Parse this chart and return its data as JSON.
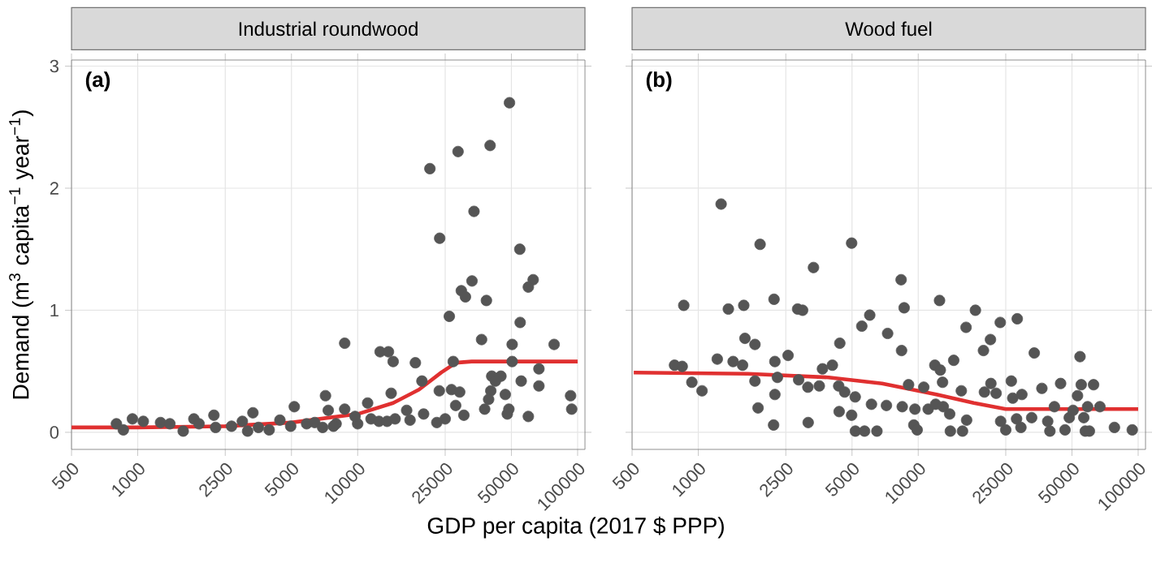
{
  "chart_data": [
    {
      "type": "scatter",
      "title": "Industrial roundwood",
      "xlabel": "GDP per capita (2017 $ PPP)",
      "ylabel": "Demand (m$^{3}$ capita$^{−1}$ year$^{−1}$)",
      "annotations": [
        "(a)"
      ],
      "log": "x",
      "grid": true,
      "xlim": [
        500,
        108000
      ],
      "ylim": [
        -0.14,
        3.05
      ],
      "xticks": [
        500,
        1000,
        2500,
        5000,
        10000,
        25000,
        50000,
        100000
      ],
      "yticks": [
        0,
        1,
        2,
        3
      ],
      "series": [
        {
          "color": "#555555",
          "marker": "circle",
          "x": [
            49000,
            28600,
            40000,
            21300,
            33800,
            23600,
            54600,
            62800,
            59700,
            33100,
            29600,
            30900,
            38500,
            26100,
            54800,
            36600,
            50400,
            78200,
            8730,
            12650,
            13800,
            14500,
            18300,
            27200,
            50400,
            66700,
            40700,
            44800,
            42300,
            55400,
            19600,
            26700,
            29100,
            23500,
            66700,
            40300,
            39400,
            46900,
            14200,
            92900,
            94000,
            7140,
            37800,
            48700,
            47900,
            30400,
            59700,
            25000,
            22900,
            19950,
            16700,
            17300,
            27900,
            5150,
            11100,
            8730,
            7350,
            11500,
            12500,
            13600,
            14800,
            10000,
            7980,
            6380,
            3340,
            2220,
            1800,
            4430,
            946,
            800,
            860,
            1060,
            1270,
            1400,
            1610,
            1900,
            2260,
            2670,
            2990,
            3160,
            3540,
            3960,
            4960,
            5860,
            6930,
            7760,
            9730
          ],
          "values": [
            2.7,
            2.3,
            2.35,
            2.16,
            1.81,
            1.59,
            1.5,
            1.25,
            1.19,
            1.24,
            1.16,
            1.11,
            1.08,
            0.95,
            0.9,
            0.76,
            0.72,
            0.72,
            0.73,
            0.66,
            0.66,
            0.58,
            0.57,
            0.58,
            0.58,
            0.52,
            0.46,
            0.46,
            0.42,
            0.42,
            0.42,
            0.35,
            0.33,
            0.34,
            0.38,
            0.34,
            0.27,
            0.31,
            0.32,
            0.3,
            0.19,
            0.3,
            0.19,
            0.19,
            0.15,
            0.14,
            0.13,
            0.11,
            0.08,
            0.15,
            0.18,
            0.1,
            0.22,
            0.21,
            0.24,
            0.19,
            0.18,
            0.11,
            0.09,
            0.09,
            0.11,
            0.07,
            0.07,
            0.08,
            0.16,
            0.14,
            0.11,
            0.1,
            0.11,
            0.07,
            0.02,
            0.09,
            0.08,
            0.07,
            0.01,
            0.07,
            0.04,
            0.05,
            0.09,
            0.01,
            0.04,
            0.02,
            0.05,
            0.07,
            0.04,
            0.05,
            0.13
          ]
        },
        {
          "type": "line",
          "color": "#e03030",
          "line_style": "solid",
          "x": [
            500,
            1000,
            2500,
            5000,
            10000,
            14500,
            19000,
            24000,
            28000,
            33000,
            100000
          ],
          "values": [
            0.04,
            0.04,
            0.05,
            0.08,
            0.15,
            0.24,
            0.35,
            0.49,
            0.57,
            0.58,
            0.58
          ]
        }
      ]
    },
    {
      "type": "scatter",
      "title": "Wood fuel",
      "annotations": [
        "(b)"
      ],
      "log": "x",
      "grid": true,
      "tick_labels": "x",
      "xlim": [
        500,
        108000
      ],
      "ylim": [
        -0.14,
        3.05
      ],
      "xticks": [
        500,
        1000,
        2500,
        5000,
        10000,
        25000,
        50000,
        100000
      ],
      "yticks": [
        0,
        1,
        2,
        3
      ],
      "series": [
        {
          "color": "#555555",
          "marker": "circle",
          "x": [
            1270,
            1910,
            4980,
            3340,
            8360,
            859,
            1370,
            1610,
            2210,
            2830,
            2980,
            8630,
            12500,
            18200,
            28200,
            23600,
            6020,
            5540,
            16500,
            7260,
            21300,
            1630,
            1810,
            4400,
            8400,
            19800,
            33700,
            54400,
            2560,
            1220,
            1440,
            2230,
            14500,
            780,
            845,
            1590,
            4070,
            3670,
            11900,
            12600,
            2290,
            1810,
            2860,
            3150,
            3550,
            935,
            1040,
            4350,
            4630,
            5170,
            9040,
            10600,
            12900,
            15700,
            20000,
            21400,
            22600,
            26500,
            26900,
            29600,
            36500,
            44400,
            62700,
            53000,
            55100,
            58900,
            67000,
            1870,
            2230,
            6130,
            7170,
            8460,
            4370,
            4980,
            9660,
            11100,
            12000,
            13000,
            13900,
            16600,
            23700,
            28000,
            32800,
            38800,
            41600,
            48600,
            50600,
            56600,
            2200,
            3160,
            9550,
            57500,
            5180,
            5700,
            6490,
            9890,
            14000,
            15900,
            25000,
            29300,
            39700,
            46500,
            60000,
            78000,
            94000
          ],
          "values": [
            1.87,
            1.54,
            1.55,
            1.35,
            1.25,
            1.04,
            1.01,
            1.04,
            1.09,
            1.01,
            1.0,
            1.02,
            1.08,
            1.0,
            0.93,
            0.9,
            0.96,
            0.87,
            0.86,
            0.81,
            0.76,
            0.77,
            0.72,
            0.73,
            0.67,
            0.67,
            0.65,
            0.62,
            0.63,
            0.6,
            0.58,
            0.58,
            0.59,
            0.55,
            0.54,
            0.55,
            0.55,
            0.52,
            0.55,
            0.51,
            0.45,
            0.42,
            0.43,
            0.37,
            0.38,
            0.41,
            0.34,
            0.38,
            0.33,
            0.29,
            0.39,
            0.37,
            0.41,
            0.34,
            0.33,
            0.4,
            0.32,
            0.42,
            0.28,
            0.31,
            0.36,
            0.4,
            0.39,
            0.3,
            0.39,
            0.21,
            0.21,
            0.2,
            0.31,
            0.23,
            0.22,
            0.21,
            0.17,
            0.14,
            0.19,
            0.19,
            0.23,
            0.21,
            0.15,
            0.1,
            0.09,
            0.11,
            0.12,
            0.09,
            0.21,
            0.12,
            0.18,
            0.12,
            0.06,
            0.08,
            0.06,
            0.01,
            0.01,
            0.01,
            0.01,
            0.02,
            0.01,
            0.01,
            0.02,
            0.04,
            0.01,
            0.02,
            0.01,
            0.04,
            0.02
          ]
        },
        {
          "type": "line",
          "color": "#e03030",
          "line_style": "solid",
          "x": [
            509,
            1680,
            3910,
            6850,
            12100,
            17900,
            25000,
            100000
          ],
          "values": [
            0.49,
            0.48,
            0.45,
            0.4,
            0.31,
            0.24,
            0.19,
            0.19
          ]
        }
      ]
    }
  ]
}
